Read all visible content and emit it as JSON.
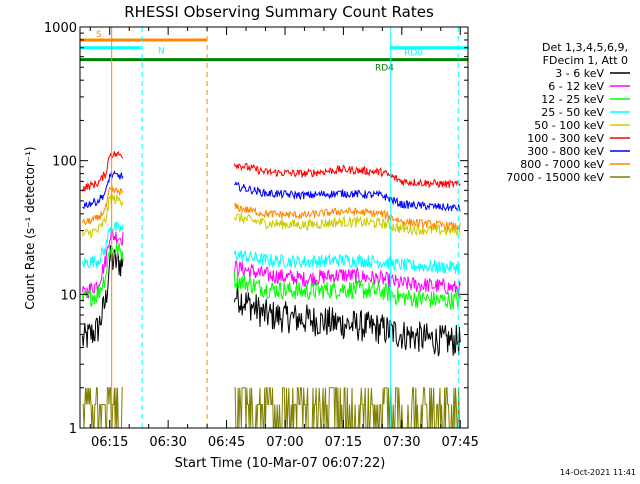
{
  "chart_data": {
    "type": "line",
    "title": "RHESSI Observing Summary Count Rates",
    "xlabel": "Start Time (10-Mar-07 06:07:22)",
    "ylabel": "Count Rate (s⁻¹ detector⁻¹)",
    "y_scale": "log",
    "ylim": [
      1,
      1000
    ],
    "xlim": [
      "06:07:22",
      "07:47:00"
    ],
    "x_ticks": [
      "06:15",
      "06:30",
      "06:45",
      "07:00",
      "07:15",
      "07:30",
      "07:45"
    ],
    "y_ticks": [
      "1",
      "10",
      "100",
      "1000"
    ],
    "legend_header": [
      "Det 1,3,4,5,6,9,",
      "FDecim 1, Att 0"
    ],
    "legend_position": "right",
    "footer_date": "14-Oct-2021 11:41",
    "data_gap": [
      "06:18:30",
      "06:47:00"
    ],
    "series": [
      {
        "name": "3 - 6 keV",
        "color": "#000000",
        "x": [
          "06:08",
          "06:12",
          "06:14",
          "06:15",
          "06:47",
          "06:55",
          "07:05",
          "07:15",
          "07:25",
          "07:30",
          "07:40",
          "07:45"
        ],
        "y": [
          4.5,
          5.5,
          9,
          18,
          10,
          7,
          6.5,
          6,
          5.5,
          5,
          4.5,
          4.5
        ]
      },
      {
        "name": "6 - 12 keV",
        "color": "#ff00ff",
        "x": [
          "06:08",
          "06:12",
          "06:14",
          "06:15",
          "06:47",
          "06:55",
          "07:05",
          "07:15",
          "07:25",
          "07:30",
          "07:40",
          "07:45"
        ],
        "y": [
          10,
          12,
          18,
          28,
          16,
          14,
          13,
          14,
          13,
          12,
          11.5,
          11
        ]
      },
      {
        "name": "12 - 25 keV",
        "color": "#00ff00",
        "x": [
          "06:08",
          "06:12",
          "06:14",
          "06:15",
          "06:47",
          "06:55",
          "07:05",
          "07:15",
          "07:25",
          "07:30",
          "07:40",
          "07:45"
        ],
        "y": [
          9,
          10,
          14,
          22,
          13,
          11,
          10.5,
          11,
          10.5,
          9.5,
          9,
          9
        ]
      },
      {
        "name": "25 - 50 keV",
        "color": "#00ffff",
        "x": [
          "06:08",
          "06:12",
          "06:14",
          "06:15",
          "06:47",
          "06:55",
          "07:05",
          "07:15",
          "07:25",
          "07:30",
          "07:40",
          "07:45"
        ],
        "y": [
          17,
          18,
          22,
          32,
          20,
          18,
          17.5,
          18,
          17.5,
          16.5,
          16,
          16
        ]
      },
      {
        "name": "50 - 100 keV",
        "color": "#cccc00",
        "x": [
          "06:08",
          "06:12",
          "06:14",
          "06:15",
          "06:47",
          "06:55",
          "07:05",
          "07:15",
          "07:25",
          "07:30",
          "07:40",
          "07:45"
        ],
        "y": [
          28,
          30,
          36,
          52,
          38,
          34,
          33,
          35,
          34,
          31,
          30,
          30
        ]
      },
      {
        "name": "100 - 300 keV",
        "color": "#ff0000",
        "x": [
          "06:08",
          "06:12",
          "06:14",
          "06:15",
          "06:47",
          "06:55",
          "07:05",
          "07:15",
          "07:25",
          "07:30",
          "07:40",
          "07:45"
        ],
        "y": [
          62,
          68,
          80,
          112,
          95,
          82,
          80,
          86,
          82,
          70,
          67,
          66
        ]
      },
      {
        "name": "300 - 800 keV",
        "color": "#0000ff",
        "x": [
          "06:08",
          "06:12",
          "06:14",
          "06:15",
          "06:47",
          "06:55",
          "07:05",
          "07:15",
          "07:25",
          "07:30",
          "07:40",
          "07:45"
        ],
        "y": [
          46,
          50,
          58,
          78,
          65,
          57,
          55,
          57,
          55,
          47,
          45,
          44
        ]
      },
      {
        "name": "800 - 7000 keV",
        "color": "#ff8800",
        "x": [
          "06:08",
          "06:12",
          "06:14",
          "06:15",
          "06:47",
          "06:55",
          "07:05",
          "07:15",
          "07:25",
          "07:30",
          "07:40",
          "07:45"
        ],
        "y": [
          34,
          37,
          44,
          60,
          45,
          40,
          39,
          42,
          40,
          35,
          33,
          32
        ]
      },
      {
        "name": "7000 - 15000 keV",
        "color": "#808000",
        "x": [
          "06:08",
          "06:12",
          "06:14",
          "06:15",
          "06:47",
          "06:55",
          "07:05",
          "07:15",
          "07:25",
          "07:30",
          "07:40",
          "07:45"
        ],
        "y": [
          2,
          2,
          2,
          2,
          2,
          2,
          1.5,
          2.5,
          2,
          2,
          1.5,
          2
        ]
      }
    ],
    "flag_bars": [
      {
        "label": "S",
        "color": "#ff8800",
        "y": 800,
        "x0": "06:07:22",
        "x1": "06:40:00"
      },
      {
        "label": "N",
        "color": "#00ffff",
        "y": 700,
        "x0": "06:07:22",
        "x1": "06:23:00"
      },
      {
        "label": "RD0",
        "color": "#00ffff",
        "y": 700,
        "x0": "07:27:00",
        "x1": "07:47:00"
      },
      {
        "label": "RD4",
        "color": "#008000",
        "y": 570,
        "x0": "06:07:22",
        "x1": "07:47:00"
      }
    ],
    "vlines": [
      {
        "x": "06:15:30",
        "color": "#ff8800",
        "style": "solid"
      },
      {
        "x": "06:23:20",
        "color": "#00ffff",
        "style": "dashed"
      },
      {
        "x": "06:40:00",
        "color": "#ff8800",
        "style": "dashed"
      },
      {
        "x": "07:27:10",
        "color": "#00ffff",
        "style": "solid"
      },
      {
        "x": "07:44:30",
        "color": "#00ffff",
        "style": "dashed"
      }
    ]
  }
}
